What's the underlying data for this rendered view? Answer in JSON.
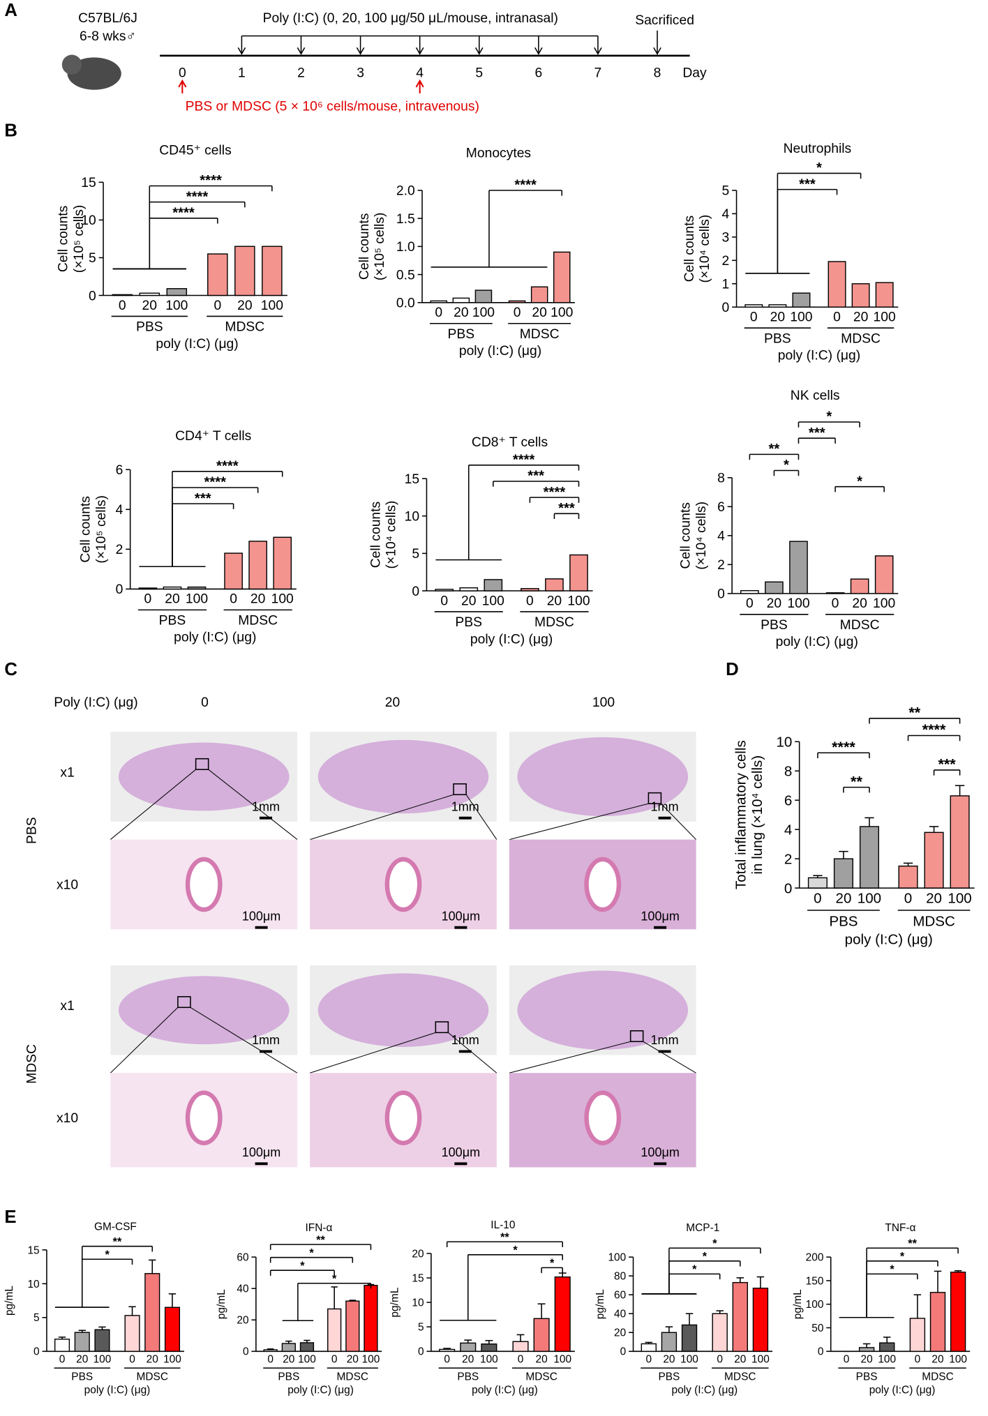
{
  "panels": {
    "a": "A",
    "b": "B",
    "c": "C",
    "d": "D",
    "e": "E"
  },
  "timeline": {
    "strain": "C57BL/6J",
    "age": "6-8 wks♂",
    "treatment": "Poly (I:C) (0, 20, 100 μg/50 μL/mouse, intranasal)",
    "endpoint": "Sacrificed",
    "unit": "Day",
    "injection": "PBS or MDSC (5 × 10⁶ cells/mouse, intravenous)",
    "days": [
      0,
      1,
      2,
      3,
      4,
      5,
      6,
      7,
      8
    ],
    "poly_days": [
      1,
      2,
      3,
      4,
      5,
      6,
      7
    ],
    "injection_days": [
      0,
      4
    ],
    "sacrifice_day": 8
  },
  "histology": {
    "dose_label": "Poly (I:C) (μg)",
    "doses": [
      "0",
      "20",
      "100"
    ],
    "rows": [
      "PBS",
      "MDSC"
    ],
    "magnifications": [
      "x1",
      "x10"
    ],
    "scale_bars": [
      "1mm",
      "100μm"
    ]
  },
  "chart_data": [
    {
      "type": "bar",
      "title": "CD45⁺ cells",
      "ylabel": [
        "Cell counts",
        "(×10⁵ cells)"
      ],
      "categories": [
        "0",
        "20",
        "100",
        "0",
        "20",
        "100"
      ],
      "groups": [
        "PBS",
        "MDSC"
      ],
      "xlabel": "poly (I:C) (μg)",
      "values": [
        0.1,
        0.3,
        0.9,
        5.5,
        6.5,
        6.5
      ],
      "colors": [
        "#ffffff",
        "#ffffff",
        "#a0a0a0",
        "#f4948f",
        "#f4948f",
        "#f4948f"
      ],
      "ylim": [
        0,
        15
      ],
      "yticks": [
        0,
        5,
        10,
        15
      ],
      "comparisons": [
        {
          "a": [
            0,
            1,
            2
          ],
          "b": 5,
          "label": "****"
        },
        {
          "a": [
            0,
            1,
            2
          ],
          "b": 4,
          "label": "****"
        },
        {
          "a": [
            0,
            1,
            2
          ],
          "b": 3,
          "label": "****"
        }
      ]
    },
    {
      "type": "bar",
      "title": "Monocytes",
      "ylabel": [
        "Cell counts",
        "(×10⁵ cells)"
      ],
      "categories": [
        "0",
        "20",
        "100",
        "0",
        "20",
        "100"
      ],
      "groups": [
        "PBS",
        "MDSC"
      ],
      "xlabel": "poly (I:C) (μg)",
      "values": [
        0.03,
        0.08,
        0.22,
        0.03,
        0.28,
        0.9
      ],
      "colors": [
        "#ffffff",
        "#ffffff",
        "#a0a0a0",
        "#f4948f",
        "#f4948f",
        "#f4948f"
      ],
      "ylim": [
        0,
        2
      ],
      "yticks": [
        {
          "value": 0,
          "label": "0.0"
        },
        {
          "value": 0.5,
          "label": "0.5"
        },
        {
          "value": 1,
          "label": "1.0"
        },
        {
          "value": 1.5,
          "label": "1.5"
        },
        {
          "value": 2,
          "label": "2.0"
        }
      ],
      "comparisons": [
        {
          "a": [
            0,
            1,
            2,
            3,
            4
          ],
          "b": 5,
          "label": "****"
        }
      ]
    },
    {
      "type": "bar",
      "title": "Neutrophils",
      "ylabel": [
        "Cell counts",
        "(×10⁴ cells)"
      ],
      "categories": [
        "0",
        "20",
        "100",
        "0",
        "20",
        "100"
      ],
      "groups": [
        "PBS",
        "MDSC"
      ],
      "xlabel": "poly (I:C) (μg)",
      "values": [
        0.1,
        0.1,
        0.6,
        1.95,
        1.0,
        1.05
      ],
      "colors": [
        "#ffffff",
        "#ffffff",
        "#a0a0a0",
        "#f4948f",
        "#f4948f",
        "#f4948f"
      ],
      "ylim": [
        0,
        5
      ],
      "yticks": [
        0,
        1,
        2,
        3,
        4,
        5
      ],
      "comparisons": [
        {
          "a": [
            0,
            1,
            2
          ],
          "b": 4,
          "label": "*"
        },
        {
          "a": [
            0,
            1,
            2
          ],
          "b": 3,
          "label": "***"
        }
      ]
    },
    {
      "type": "bar",
      "title": "CD4⁺ T cells",
      "ylabel": [
        "Cell counts",
        "(×10⁵ cells)"
      ],
      "categories": [
        "0",
        "20",
        "100",
        "0",
        "20",
        "100"
      ],
      "groups": [
        "PBS",
        "MDSC"
      ],
      "xlabel": "poly (I:C) (μg)",
      "values": [
        0.05,
        0.1,
        0.1,
        1.8,
        2.4,
        2.6
      ],
      "colors": [
        "#ffffff",
        "#ffffff",
        "#a0a0a0",
        "#f4948f",
        "#f4948f",
        "#f4948f"
      ],
      "ylim": [
        0,
        6
      ],
      "yticks": [
        0,
        2,
        4,
        6
      ],
      "comparisons": [
        {
          "a": [
            0,
            1,
            2
          ],
          "b": 5,
          "label": "****"
        },
        {
          "a": [
            0,
            1,
            2
          ],
          "b": 4,
          "label": "****"
        },
        {
          "a": [
            0,
            1,
            2
          ],
          "b": 3,
          "label": "***"
        }
      ]
    },
    {
      "type": "bar",
      "title": "CD8⁺ T cells",
      "ylabel": [
        "Cell counts",
        "(×10⁴ cells)"
      ],
      "categories": [
        "0",
        "20",
        "100",
        "0",
        "20",
        "100"
      ],
      "groups": [
        "PBS",
        "MDSC"
      ],
      "xlabel": "poly (I:C) (μg)",
      "values": [
        0.2,
        0.4,
        1.5,
        0.3,
        1.6,
        4.8
      ],
      "colors": [
        "#ffffff",
        "#ffffff",
        "#a0a0a0",
        "#f4948f",
        "#f4948f",
        "#f4948f"
      ],
      "ylim": [
        0,
        15
      ],
      "yticks": [
        0,
        5,
        10,
        15
      ],
      "comparisons": [
        {
          "a": [
            0,
            1,
            2
          ],
          "b": 5,
          "label": "****"
        },
        {
          "a": [
            2
          ],
          "b": 5,
          "label": "***"
        },
        {
          "a": [
            3
          ],
          "b": 5,
          "label": "****"
        },
        {
          "a": [
            4
          ],
          "b": 5,
          "label": "***"
        }
      ]
    },
    {
      "type": "bar",
      "title": "NK cells",
      "ylabel": [
        "Cell counts",
        "(×10⁴ cells)"
      ],
      "categories": [
        "0",
        "20",
        "100",
        "0",
        "20",
        "100"
      ],
      "groups": [
        "PBS",
        "MDSC"
      ],
      "xlabel": "poly (I:C) (μg)",
      "values": [
        0.2,
        0.8,
        3.6,
        0.05,
        1.0,
        2.6
      ],
      "colors": [
        "#ffffff",
        "#a0a0a0",
        "#a0a0a0",
        "#f4948f",
        "#f4948f",
        "#f4948f"
      ],
      "ylim": [
        0,
        8
      ],
      "yticks": [
        0,
        2,
        4,
        6,
        8
      ],
      "comparisons": [
        {
          "a": [
            2
          ],
          "b": 4,
          "label": "*"
        },
        {
          "a": [
            2
          ],
          "b": 3,
          "label": "***"
        },
        {
          "a": [
            0
          ],
          "b": 2,
          "label": "**"
        },
        {
          "a": [
            1
          ],
          "b": 2,
          "label": "*"
        },
        {
          "a": [
            3
          ],
          "b": 5,
          "label": "*"
        }
      ]
    },
    {
      "type": "bar",
      "ylabel": [
        "Total inflammatory cells",
        "in lung (×10⁴ cells)"
      ],
      "categories": [
        "0",
        "20",
        "100",
        "0",
        "20",
        "100"
      ],
      "groups": [
        "PBS",
        "MDSC"
      ],
      "xlabel": "poly (I:C) (μg)",
      "values": [
        0.7,
        2.0,
        4.2,
        1.5,
        3.8,
        6.3
      ],
      "errors": [
        0.15,
        0.5,
        0.6,
        0.2,
        0.4,
        0.7
      ],
      "colors": [
        "#d9d9d9",
        "#a0a0a0",
        "#a0a0a0",
        "#f4948f",
        "#f4948f",
        "#f4948f"
      ],
      "ylim": [
        0,
        10
      ],
      "yticks": [
        0,
        2,
        4,
        6,
        8,
        10
      ],
      "comparisons": [
        {
          "a": [
            2
          ],
          "b": 5,
          "label": "**"
        },
        {
          "a": [
            3
          ],
          "b": 5,
          "label": "****"
        },
        {
          "a": [
            0
          ],
          "b": 2,
          "label": "****"
        },
        {
          "a": [
            4
          ],
          "b": 5,
          "label": "***"
        },
        {
          "a": [
            1
          ],
          "b": 2,
          "label": "**"
        }
      ]
    },
    {
      "type": "bar",
      "title": "GM-CSF",
      "ylabel": [
        "pg/mL"
      ],
      "categories": [
        "0",
        "20",
        "100",
        "0",
        "20",
        "100"
      ],
      "groups": [
        "PBS",
        "MDSC"
      ],
      "xlabel": "poly (I:C) (μg)",
      "values": [
        1.8,
        2.8,
        3.2,
        5.3,
        11.5,
        6.5
      ],
      "errors": [
        0.3,
        0.3,
        0.4,
        1.3,
        2,
        2
      ],
      "colors": [
        "#ffffff",
        "#a6a6a6",
        "#595959",
        "#ffd6d6",
        "#f47a7a",
        "#ff0000"
      ],
      "ylim": [
        0,
        15
      ],
      "yticks": [
        0,
        5,
        10,
        15
      ],
      "comparisons": [
        {
          "a": [
            0,
            1,
            2
          ],
          "b": 4,
          "label": "**"
        },
        {
          "a": [
            0,
            1,
            2
          ],
          "b": 3,
          "label": "*"
        }
      ]
    },
    {
      "type": "bar",
      "title": "IFN-α",
      "ylabel": [
        "pg/mL"
      ],
      "categories": [
        "0",
        "20",
        "100",
        "0",
        "20",
        "100"
      ],
      "groups": [
        "PBS",
        "MDSC"
      ],
      "xlabel": "poly (I:C) (μg)",
      "values": [
        1,
        5,
        5.5,
        27,
        32,
        42
      ],
      "errors": [
        0.5,
        1.5,
        1.5,
        14,
        0.5,
        0.5
      ],
      "colors": [
        "#ffffff",
        "#a6a6a6",
        "#595959",
        "#ffd6d6",
        "#f47a7a",
        "#ff0000"
      ],
      "ylim": [
        0,
        60
      ],
      "yticks": [
        0,
        20,
        40,
        60
      ],
      "comparisons": [
        {
          "a": [
            0
          ],
          "b": 5,
          "label": "**"
        },
        {
          "a": [
            0
          ],
          "b": 4,
          "label": "*"
        },
        {
          "a": [
            0
          ],
          "b": 3,
          "label": "*"
        },
        {
          "a": [
            1,
            2
          ],
          "b": 5,
          "label": "*"
        }
      ]
    },
    {
      "type": "bar",
      "title": "IL-10",
      "ylabel": [
        "pg/mL"
      ],
      "categories": [
        "0",
        "20",
        "100",
        "0",
        "20",
        "100"
      ],
      "groups": [
        "PBS",
        "MDSC"
      ],
      "xlabel": "poly (I:C) (μg)",
      "values": [
        0.4,
        1.7,
        1.5,
        2.0,
        6.7,
        15.2
      ],
      "errors": [
        0.2,
        0.6,
        0.7,
        1.4,
        3,
        0.8
      ],
      "colors": [
        "#ffffff",
        "#a6a6a6",
        "#595959",
        "#ffd6d6",
        "#f47a7a",
        "#ff0000"
      ],
      "ylim": [
        0,
        20
      ],
      "yticks": [
        0,
        5,
        10,
        15,
        20
      ],
      "comparisons": [
        {
          "a": [
            0
          ],
          "b": 5,
          "label": "**"
        },
        {
          "a": [
            0,
            1,
            2
          ],
          "b": 5,
          "label": "*"
        },
        {
          "a": [
            4
          ],
          "b": 5,
          "label": "*"
        }
      ]
    },
    {
      "type": "bar",
      "title": "MCP-1",
      "ylabel": [
        "pg/mL"
      ],
      "categories": [
        "0",
        "20",
        "100",
        "0",
        "20",
        "100"
      ],
      "groups": [
        "PBS",
        "MDSC"
      ],
      "xlabel": "poly (I:C) (μg)",
      "values": [
        8,
        20,
        28,
        40,
        73,
        67
      ],
      "errors": [
        1.5,
        6,
        12,
        3,
        5,
        12
      ],
      "colors": [
        "#ffffff",
        "#a6a6a6",
        "#595959",
        "#ffd6d6",
        "#f47a7a",
        "#ff0000"
      ],
      "ylim": [
        0,
        100
      ],
      "yticks": [
        0,
        20,
        40,
        60,
        80,
        100
      ],
      "comparisons": [
        {
          "a": [
            0,
            1,
            2
          ],
          "b": 5,
          "label": "*"
        },
        {
          "a": [
            0,
            1,
            2
          ],
          "b": 4,
          "label": "*"
        },
        {
          "a": [
            0,
            1,
            2
          ],
          "b": 3,
          "label": "*"
        }
      ]
    },
    {
      "type": "bar",
      "title": "TNF-α",
      "ylabel": [
        "pg/mL"
      ],
      "categories": [
        "0",
        "20",
        "100",
        "0",
        "20",
        "100"
      ],
      "groups": [
        "PBS",
        "MDSC"
      ],
      "xlabel": "poly (I:C) (μg)",
      "values": [
        0,
        8,
        18,
        70,
        125,
        168
      ],
      "errors": [
        0,
        8,
        12,
        50,
        45,
        3
      ],
      "colors": [
        "#ffffff",
        "#a6a6a6",
        "#595959",
        "#ffd6d6",
        "#f47a7a",
        "#ff0000"
      ],
      "ylim": [
        0,
        200
      ],
      "yticks": [
        0,
        50,
        100,
        150,
        200
      ],
      "comparisons": [
        {
          "a": [
            0,
            1,
            2
          ],
          "b": 5,
          "label": "**"
        },
        {
          "a": [
            0,
            1,
            2
          ],
          "b": 4,
          "label": "*"
        },
        {
          "a": [
            0,
            1,
            2
          ],
          "b": 3,
          "label": "*"
        }
      ]
    }
  ]
}
